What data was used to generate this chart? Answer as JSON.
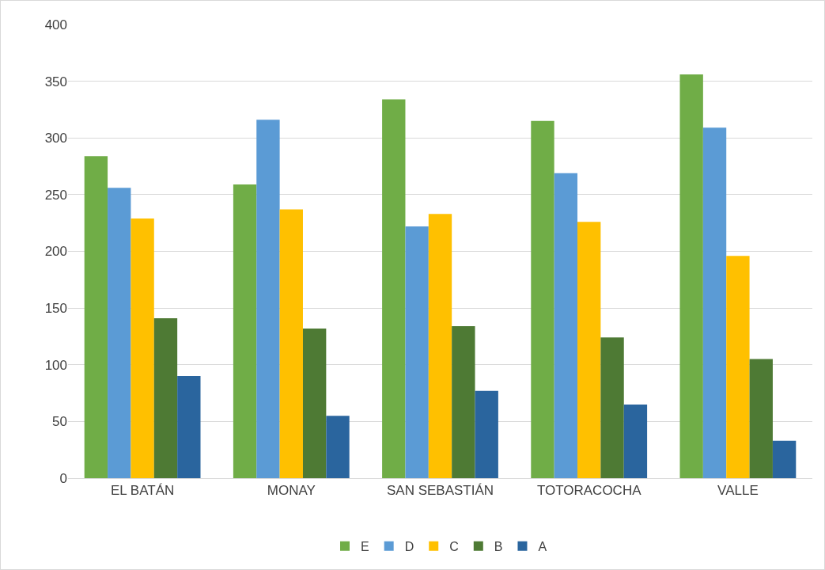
{
  "chart_data": {
    "type": "bar",
    "categories": [
      "EL BATÁN",
      "MONAY",
      "SAN SEBASTIÁN",
      "TOTORACOCHA",
      "VALLE"
    ],
    "series": [
      {
        "name": "E",
        "color": "#70ad47",
        "values": [
          284,
          259,
          334,
          315,
          356
        ]
      },
      {
        "name": "D",
        "color": "#5b9bd5",
        "values": [
          256,
          316,
          222,
          269,
          309
        ]
      },
      {
        "name": "C",
        "color": "#ffc000",
        "values": [
          229,
          237,
          233,
          226,
          196
        ]
      },
      {
        "name": "B",
        "color": "#4e7a34",
        "values": [
          141,
          132,
          134,
          124,
          105
        ]
      },
      {
        "name": "A",
        "color": "#2a659e",
        "values": [
          90,
          55,
          77,
          65,
          33
        ]
      }
    ],
    "ylim": [
      0,
      400
    ],
    "yticks": [
      0,
      50,
      100,
      150,
      200,
      250,
      300,
      350,
      400
    ],
    "grid": "y",
    "legend": "bottom"
  }
}
